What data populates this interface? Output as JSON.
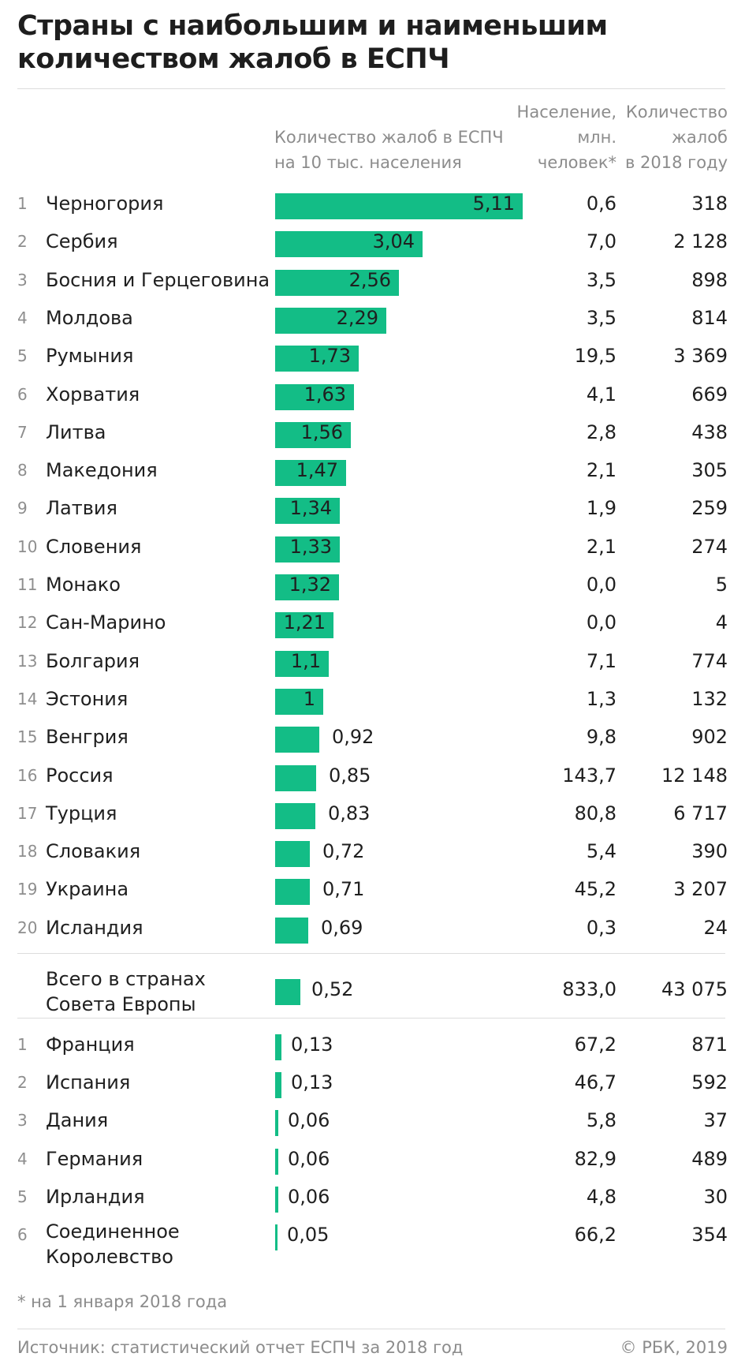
{
  "title_line1": "Страны с наибольшим и наименьшим",
  "title_line2": "количеством жалоб в ЕСПЧ",
  "headers": {
    "rate_line1": "Количество жалоб в ЕСПЧ",
    "rate_line2": "на 10 тыс. населения",
    "pop_line1": "Население,",
    "pop_line2": "млн.",
    "pop_line3": "человек*",
    "cmp_line1": "Количество",
    "cmp_line2": "жалоб",
    "cmp_line3": "в 2018 году"
  },
  "chart_data": {
    "type": "bar",
    "orientation": "horizontal",
    "bar_color": "#13bd86",
    "top_rows": [
      {
        "rank": "1",
        "country": "Черногория",
        "value": 5.11,
        "label": "5,11",
        "population": "0,6",
        "complaints": "318"
      },
      {
        "rank": "2",
        "country": "Сербия",
        "value": 3.04,
        "label": "3,04",
        "population": "7,0",
        "complaints": "2 128"
      },
      {
        "rank": "3",
        "country": "Босния и Герцеговина",
        "value": 2.56,
        "label": "2,56",
        "population": "3,5",
        "complaints": "898"
      },
      {
        "rank": "4",
        "country": "Молдова",
        "value": 2.29,
        "label": "2,29",
        "population": "3,5",
        "complaints": "814"
      },
      {
        "rank": "5",
        "country": "Румыния",
        "value": 1.73,
        "label": "1,73",
        "population": "19,5",
        "complaints": "3 369"
      },
      {
        "rank": "6",
        "country": "Хорватия",
        "value": 1.63,
        "label": "1,63",
        "population": "4,1",
        "complaints": "669"
      },
      {
        "rank": "7",
        "country": "Литва",
        "value": 1.56,
        "label": "1,56",
        "population": "2,8",
        "complaints": "438"
      },
      {
        "rank": "8",
        "country": "Македония",
        "value": 1.47,
        "label": "1,47",
        "population": "2,1",
        "complaints": "305"
      },
      {
        "rank": "9",
        "country": "Латвия",
        "value": 1.34,
        "label": "1,34",
        "population": "1,9",
        "complaints": "259"
      },
      {
        "rank": "10",
        "country": "Словения",
        "value": 1.33,
        "label": "1,33",
        "population": "2,1",
        "complaints": "274"
      },
      {
        "rank": "11",
        "country": "Монако",
        "value": 1.32,
        "label": "1,32",
        "population": "0,0",
        "complaints": "5"
      },
      {
        "rank": "12",
        "country": "Сан-Марино",
        "value": 1.21,
        "label": "1,21",
        "population": "0,0",
        "complaints": "4"
      },
      {
        "rank": "13",
        "country": "Болгария",
        "value": 1.1,
        "label": "1,1",
        "population": "7,1",
        "complaints": "774"
      },
      {
        "rank": "14",
        "country": "Эстония",
        "value": 1.0,
        "label": "1",
        "population": "1,3",
        "complaints": "132"
      },
      {
        "rank": "15",
        "country": "Венгрия",
        "value": 0.92,
        "label": "0,92",
        "population": "9,8",
        "complaints": "902"
      },
      {
        "rank": "16",
        "country": "Россия",
        "value": 0.85,
        "label": "0,85",
        "population": "143,7",
        "complaints": "12 148"
      },
      {
        "rank": "17",
        "country": "Турция",
        "value": 0.83,
        "label": "0,83",
        "population": "80,8",
        "complaints": "6 717"
      },
      {
        "rank": "18",
        "country": "Словакия",
        "value": 0.72,
        "label": "0,72",
        "population": "5,4",
        "complaints": "390"
      },
      {
        "rank": "19",
        "country": "Украина",
        "value": 0.71,
        "label": "0,71",
        "population": "45,2",
        "complaints": "3 207"
      },
      {
        "rank": "20",
        "country": "Исландия",
        "value": 0.69,
        "label": "0,69",
        "population": "0,3",
        "complaints": "24"
      }
    ],
    "total": {
      "country_line1": "Всего в странах",
      "country_line2": "Совета Европы",
      "value": 0.52,
      "label": "0,52",
      "population": "833,0",
      "complaints": "43 075"
    },
    "bottom_rows": [
      {
        "rank": "1",
        "country": "Франция",
        "value": 0.13,
        "label": "0,13",
        "population": "67,2",
        "complaints": "871"
      },
      {
        "rank": "2",
        "country": "Испания",
        "value": 0.13,
        "label": "0,13",
        "population": "46,7",
        "complaints": "592"
      },
      {
        "rank": "3",
        "country": "Дания",
        "value": 0.06,
        "label": "0,06",
        "population": "5,8",
        "complaints": "37"
      },
      {
        "rank": "4",
        "country": "Германия",
        "value": 0.06,
        "label": "0,06",
        "population": "82,9",
        "complaints": "489"
      },
      {
        "rank": "5",
        "country": "Ирландия",
        "value": 0.06,
        "label": "0,06",
        "population": "4,8",
        "complaints": "30"
      },
      {
        "rank": "6",
        "country": "Соединенное",
        "country_line2": "Королевство",
        "value": 0.05,
        "label": "0,05",
        "population": "66,2",
        "complaints": "354"
      }
    ]
  },
  "footnote": "* на 1 января 2018 года",
  "source": "Источник: статистический отчет ЕСПЧ за 2018 год",
  "copyright": "© РБК, 2019"
}
